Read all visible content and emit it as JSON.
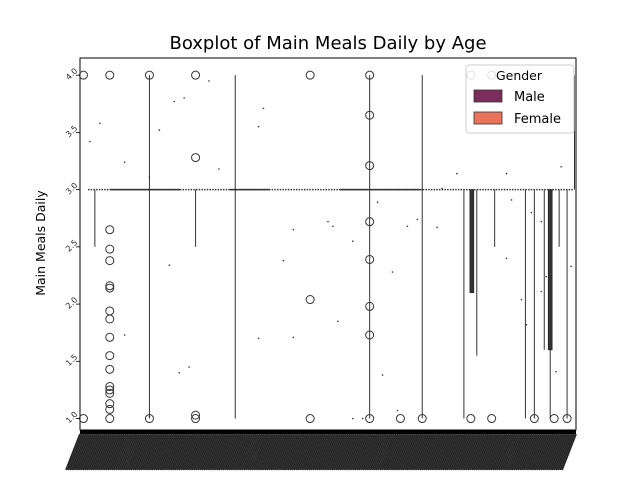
{
  "chart_data": {
    "type": "boxplot",
    "title": "Boxplot of Main Meals Daily by Age",
    "xlabel": "",
    "ylabel": "Main Meals Daily",
    "ylim": [
      0.9,
      4.15
    ],
    "y_ticks": [
      "1.0",
      "1.5",
      "2.0",
      "2.5",
      "3.0",
      "3.5",
      "4.0"
    ],
    "y_tick_values": [
      1.0,
      1.5,
      2.0,
      2.5,
      3.0,
      3.5,
      4.0
    ],
    "x_tick_labels_note": "hundreds of overlapping, unreadable age labels",
    "legend": {
      "title": "Gender",
      "placement": "top-right",
      "entries": [
        {
          "name": "Male",
          "color": "#7b2d5c"
        },
        {
          "name": "Female",
          "color": "#e8735a"
        }
      ]
    },
    "median_level": 3.0,
    "outlier_columns": [
      {
        "x": 0.007,
        "values": [
          4.0,
          1.0
        ]
      },
      {
        "x": 0.06,
        "values": [
          4.0,
          2.65,
          2.48,
          2.38,
          2.16,
          2.14,
          1.94,
          1.87,
          1.71,
          1.55,
          1.43,
          1.28,
          1.25,
          1.22,
          1.13,
          1.08,
          1.0
        ]
      },
      {
        "x": 0.14,
        "values": [
          4.0,
          1.0
        ]
      },
      {
        "x": 0.233,
        "values": [
          4.0,
          3.28,
          1.03,
          1.0
        ]
      },
      {
        "x": 0.464,
        "values": [
          4.0,
          2.04,
          1.0
        ]
      },
      {
        "x": 0.584,
        "values": [
          4.0,
          3.65,
          3.21,
          2.72,
          2.39,
          1.98,
          1.73,
          1.0
        ]
      },
      {
        "x": 0.646,
        "values": [
          1.0
        ]
      },
      {
        "x": 0.69,
        "values": [
          1.0
        ]
      },
      {
        "x": 0.788,
        "values": [
          4.0,
          1.0
        ]
      },
      {
        "x": 0.83,
        "values": [
          4.0,
          1.0
        ]
      },
      {
        "x": 0.916,
        "values": [
          1.0
        ]
      },
      {
        "x": 0.956,
        "values": [
          1.0
        ]
      },
      {
        "x": 0.982,
        "values": [
          1.0
        ]
      }
    ],
    "whiskers": [
      {
        "x": 0.03,
        "low": 2.5,
        "high": 3.0
      },
      {
        "x": 0.14,
        "low": 1.0,
        "high": 4.0
      },
      {
        "x": 0.233,
        "low": 2.5,
        "high": 3.0
      },
      {
        "x": 0.313,
        "low": 1.0,
        "high": 4.0
      },
      {
        "x": 0.584,
        "low": 1.0,
        "high": 4.0
      },
      {
        "x": 0.69,
        "low": 1.0,
        "high": 4.0
      },
      {
        "x": 0.774,
        "low": 1.0,
        "high": 3.0
      },
      {
        "x": 0.8,
        "low": 1.55,
        "high": 3.0
      },
      {
        "x": 0.836,
        "low": 2.5,
        "high": 3.0
      },
      {
        "x": 0.898,
        "low": 1.0,
        "high": 3.0
      },
      {
        "x": 0.916,
        "low": 1.0,
        "high": 3.0
      },
      {
        "x": 0.936,
        "low": 1.6,
        "high": 3.0
      },
      {
        "x": 0.948,
        "low": 1.0,
        "high": 3.0
      },
      {
        "x": 0.966,
        "low": 2.5,
        "high": 3.0
      },
      {
        "x": 0.982,
        "low": 1.0,
        "high": 3.0
      },
      {
        "x": 0.997,
        "low": 3.0,
        "high": 4.0
      }
    ],
    "boxes": [
      {
        "x": 0.79,
        "q1": 2.1,
        "q3": 3.0
      },
      {
        "x": 0.948,
        "q1": 1.6,
        "q3": 3.0
      }
    ],
    "scatter_points": [
      [
        0.02,
        3.42
      ],
      [
        0.04,
        3.58
      ],
      [
        0.09,
        3.24
      ],
      [
        0.14,
        3.11
      ],
      [
        0.19,
        3.77
      ],
      [
        0.21,
        3.8
      ],
      [
        0.26,
        3.95
      ],
      [
        0.36,
        3.55
      ],
      [
        0.37,
        3.71
      ],
      [
        0.28,
        3.18
      ],
      [
        0.43,
        2.65
      ],
      [
        0.5,
        2.72
      ],
      [
        0.51,
        2.68
      ],
      [
        0.55,
        2.55
      ],
      [
        0.63,
        2.28
      ],
      [
        0.6,
        2.89
      ],
      [
        0.66,
        2.68
      ],
      [
        0.68,
        2.74
      ],
      [
        0.72,
        2.67
      ],
      [
        0.86,
        3.14
      ],
      [
        0.87,
        2.91
      ],
      [
        0.91,
        2.8
      ],
      [
        0.93,
        2.72
      ],
      [
        0.95,
        2.6
      ],
      [
        0.97,
        3.2
      ],
      [
        0.99,
        2.33
      ],
      [
        0.89,
        2.04
      ],
      [
        0.9,
        1.82
      ],
      [
        0.93,
        2.11
      ],
      [
        0.94,
        2.24
      ],
      [
        0.96,
        1.41
      ],
      [
        0.43,
        1.71
      ],
      [
        0.41,
        2.38
      ],
      [
        0.36,
        1.7
      ],
      [
        0.22,
        1.45
      ],
      [
        0.2,
        1.4
      ],
      [
        0.52,
        1.85
      ],
      [
        0.61,
        1.38
      ],
      [
        0.64,
        1.07
      ],
      [
        0.14,
        1.02
      ],
      [
        0.18,
        2.34
      ],
      [
        0.79,
        2.3
      ],
      [
        0.86,
        2.4
      ],
      [
        0.16,
        3.52
      ],
      [
        0.09,
        1.73
      ],
      [
        0.55,
        1.0
      ],
      [
        0.57,
        1.0
      ],
      [
        0.76,
        3.14
      ],
      [
        0.73,
        3.01
      ]
    ]
  }
}
